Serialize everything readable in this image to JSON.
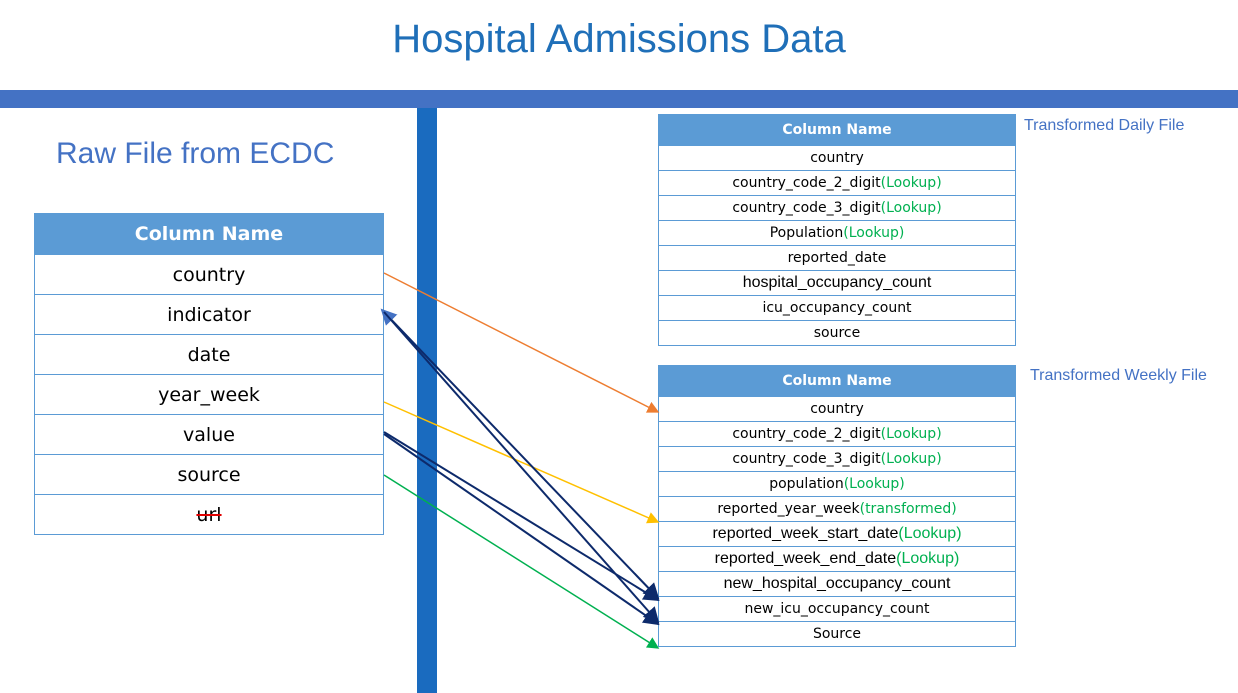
{
  "title": "Hospital Admissions Data",
  "raw": {
    "heading": "Raw File from ECDC",
    "header": "Column Name",
    "rows": [
      "country",
      "indicator",
      "date",
      "year_week",
      "value",
      "source",
      "url"
    ]
  },
  "daily": {
    "heading": "Transformed Daily File",
    "header": "Column Name",
    "rows": [
      {
        "name": "country",
        "hint": ""
      },
      {
        "name": "country_code_2_digit",
        "hint": "(Lookup)"
      },
      {
        "name": "country_code_3_digit",
        "hint": "(Lookup)"
      },
      {
        "name": "Population",
        "hint": "(Lookup)"
      },
      {
        "name": "reported_date",
        "hint": ""
      },
      {
        "name": "hospital_occupancy_count",
        "hint": ""
      },
      {
        "name": "icu_occupancy_count",
        "hint": ""
      },
      {
        "name": "source",
        "hint": ""
      }
    ]
  },
  "weekly": {
    "heading": "Transformed Weekly File",
    "header": "Column Name",
    "rows": [
      {
        "name": "country",
        "hint": ""
      },
      {
        "name": "country_code_2_digit",
        "hint": "(Lookup)"
      },
      {
        "name": "country_code_3_digit",
        "hint": "(Lookup)"
      },
      {
        "name": "population",
        "hint": "(Lookup)"
      },
      {
        "name": "reported_year_week",
        "hint": "(transformed)"
      },
      {
        "name": "reported_week_start_date",
        "hint": "(Lookup)"
      },
      {
        "name": "reported_week_end_date",
        "hint": "(Lookup)"
      },
      {
        "name": "new_hospital_occupancy_count",
        "hint": ""
      },
      {
        "name": "new_icu_occupancy_count",
        "hint": ""
      },
      {
        "name": "Source",
        "hint": ""
      }
    ]
  },
  "colors": {
    "title": "#1f6fb8",
    "band": "#4472c4",
    "table_header": "#5b9bd5",
    "lookup_hint": "#00b050",
    "arrow_country": "#ed7d31",
    "arrow_year_week": "#ffc000",
    "arrow_source": "#00b050",
    "arrow_indicator_value": "#0d2a6b"
  }
}
